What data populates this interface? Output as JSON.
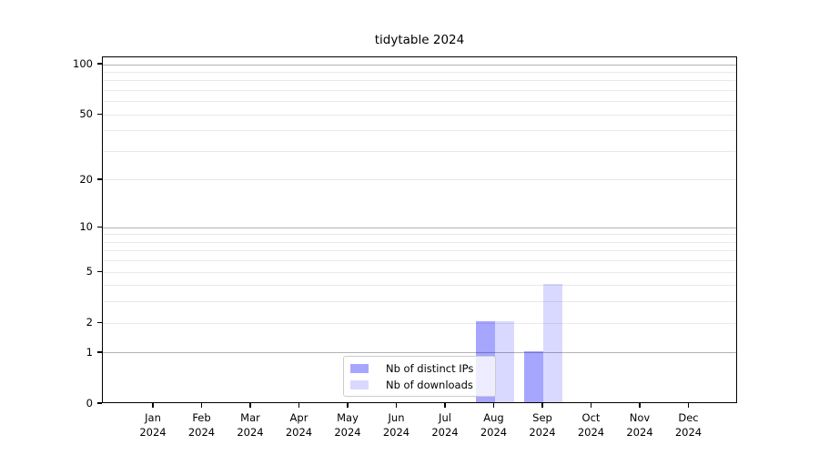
{
  "figure": {
    "title": "tidytable 2024"
  },
  "chart_data": {
    "type": "bar",
    "title": "tidytable 2024",
    "x_tick_labels": [
      {
        "month": "Jan",
        "year": "2024"
      },
      {
        "month": "Feb",
        "year": "2024"
      },
      {
        "month": "Mar",
        "year": "2024"
      },
      {
        "month": "Apr",
        "year": "2024"
      },
      {
        "month": "May",
        "year": "2024"
      },
      {
        "month": "Jun",
        "year": "2024"
      },
      {
        "month": "Jul",
        "year": "2024"
      },
      {
        "month": "Aug",
        "year": "2024"
      },
      {
        "month": "Sep",
        "year": "2024"
      },
      {
        "month": "Oct",
        "year": "2024"
      },
      {
        "month": "Nov",
        "year": "2024"
      },
      {
        "month": "Dec",
        "year": "2024"
      }
    ],
    "series": [
      {
        "name": "Nb of distinct IPs",
        "base_color": "#0000ff",
        "alpha": 0.35,
        "composite_hex": "#a6a6ff",
        "values": [
          0,
          0,
          0,
          0,
          0,
          0,
          0,
          2,
          1,
          0,
          0,
          0
        ]
      },
      {
        "name": "Nb of downloads",
        "base_color": "#0000ff",
        "alpha": 0.15,
        "composite_hex": "#d9d9ff",
        "values": [
          0,
          0,
          0,
          0,
          0,
          0,
          0,
          2,
          4,
          0,
          0,
          0
        ]
      }
    ],
    "y_axis": {
      "scale": "log1p",
      "labeled_ticks": [
        0,
        1,
        2,
        5,
        10,
        20,
        50,
        100
      ],
      "major_gridlines": [
        1,
        10,
        100
      ],
      "minor_gridlines": [
        2,
        3,
        4,
        5,
        6,
        7,
        8,
        9,
        20,
        30,
        40,
        50,
        60,
        70,
        80,
        90
      ],
      "ylim": [
        0,
        110
      ]
    },
    "grid": "horizontal",
    "legend": {
      "position": "lower center"
    }
  },
  "colors": {
    "axis": "#000000",
    "major_grid": "#b3b3b3",
    "minor_grid": "#e9e9e9",
    "text": "#000000",
    "legend_border": "#cccccc",
    "background": "#ffffff"
  }
}
